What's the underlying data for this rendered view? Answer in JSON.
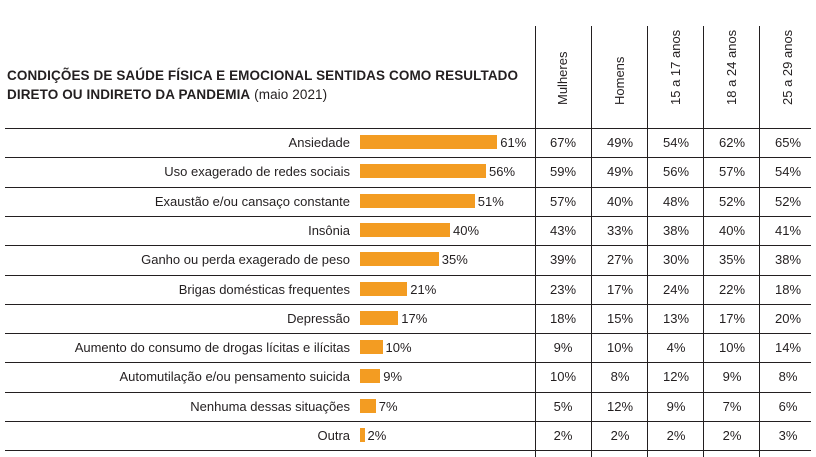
{
  "title": {
    "main": "CONDIÇÕES DE SAÚDE FÍSICA E EMOCIONAL SENTIDAS COMO RESULTADO DIRETO OU INDIRETO DA PANDEMIA",
    "sub": "(maio 2021)"
  },
  "chart_data": {
    "type": "bar",
    "orientation": "horizontal",
    "bar_color": "#f39c22",
    "categories": [
      "Ansiedade",
      "Uso exagerado de redes sociais",
      "Exaustão e/ou cansaço constante",
      "Insônia",
      "Ganho ou perda exagerado de peso",
      "Brigas domésticas frequentes",
      "Depressão",
      "Aumento do consumo de drogas lícitas e ilícitas",
      "Automutilação e/ou pensamento suicida",
      "Nenhuma dessas situações",
      "Outra"
    ],
    "values": [
      61,
      56,
      51,
      40,
      35,
      21,
      17,
      10,
      9,
      7,
      2
    ],
    "value_labels": [
      "61%",
      "56%",
      "51%",
      "40%",
      "35%",
      "21%",
      "17%",
      "10%",
      "9%",
      "7%",
      "2%"
    ],
    "table": {
      "columns": [
        "Mulheres",
        "Homens",
        "15 a 17 anos",
        "18 a 24 anos",
        "25 a 29 anos"
      ],
      "rows": [
        [
          "67%",
          "49%",
          "54%",
          "62%",
          "65%"
        ],
        [
          "59%",
          "49%",
          "56%",
          "57%",
          "54%"
        ],
        [
          "57%",
          "40%",
          "48%",
          "52%",
          "52%"
        ],
        [
          "43%",
          "33%",
          "38%",
          "40%",
          "41%"
        ],
        [
          "39%",
          "27%",
          "30%",
          "35%",
          "38%"
        ],
        [
          "23%",
          "17%",
          "24%",
          "22%",
          "18%"
        ],
        [
          "18%",
          "15%",
          "13%",
          "17%",
          "20%"
        ],
        [
          "9%",
          "10%",
          "4%",
          "10%",
          "14%"
        ],
        [
          "10%",
          "8%",
          "12%",
          "9%",
          "8%"
        ],
        [
          "5%",
          "12%",
          "9%",
          "7%",
          "6%"
        ],
        [
          "2%",
          "2%",
          "2%",
          "2%",
          "3%"
        ]
      ]
    }
  }
}
